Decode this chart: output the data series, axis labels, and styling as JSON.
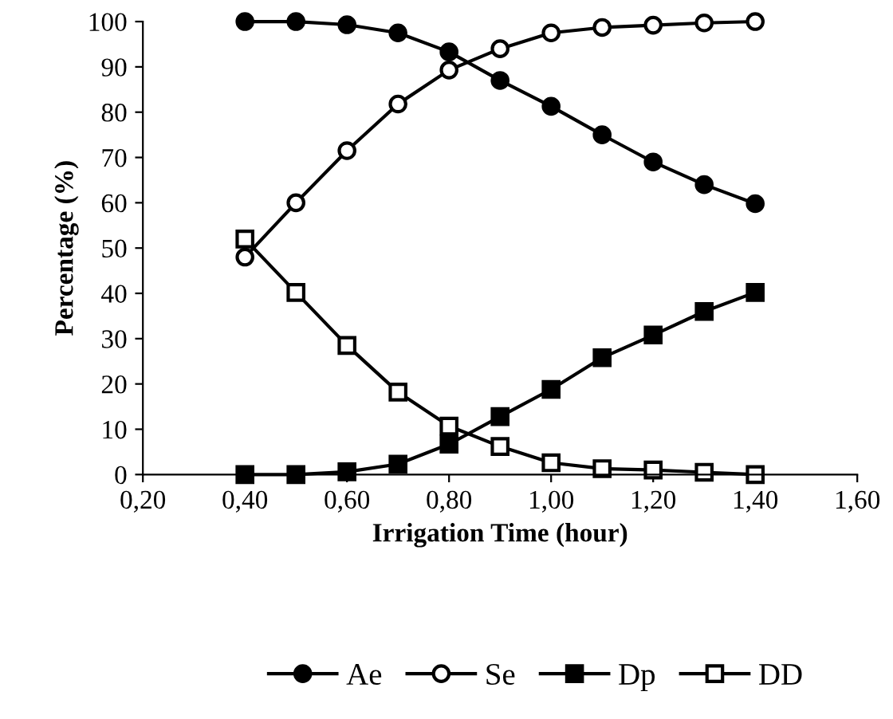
{
  "chart_data": {
    "type": "line",
    "xlabel": "Irrigation Time (hour)",
    "ylabel": "Percentage (%)",
    "x": [
      0.4,
      0.5,
      0.6,
      0.7,
      0.8,
      0.9,
      1.0,
      1.1,
      1.2,
      1.3,
      1.4
    ],
    "series": [
      {
        "name": "Ae",
        "color": "#000000",
        "marker": "circle",
        "values": [
          100,
          100,
          99.3,
          97.5,
          93.3,
          87,
          81.3,
          75,
          69,
          64,
          59.8
        ]
      },
      {
        "name": "Se",
        "color": "#000000",
        "marker": "circle",
        "values": [
          48,
          60,
          71.5,
          81.8,
          89.3,
          94,
          97.5,
          98.7,
          99.2,
          99.7,
          100
        ]
      },
      {
        "name": "Dp",
        "color": "#000000",
        "marker": "square",
        "values": [
          0,
          0,
          0.6,
          2.3,
          6.7,
          12.8,
          18.8,
          25.8,
          30.8,
          36,
          40.2
        ]
      },
      {
        "name": "DD",
        "color": "#000000",
        "marker": "square",
        "values": [
          52,
          40.2,
          28.5,
          18.2,
          10.7,
          6.2,
          2.6,
          1.3,
          1,
          0.5,
          0
        ]
      }
    ],
    "xlim": [
      0.2,
      1.6
    ],
    "xticks": [
      {
        "value": 0.2,
        "label": "0,20"
      },
      {
        "value": 0.4,
        "label": "0,40"
      },
      {
        "value": 0.6,
        "label": "0,60"
      },
      {
        "value": 0.8,
        "label": "0,80"
      },
      {
        "value": 1.0,
        "label": "1,00"
      },
      {
        "value": 1.2,
        "label": "1,20"
      },
      {
        "value": 1.4,
        "label": "1,40"
      },
      {
        "value": 1.6,
        "label": "1,60"
      }
    ],
    "ylim": [
      0,
      100
    ],
    "yticks": [
      0,
      10,
      20,
      30,
      40,
      50,
      60,
      70,
      80,
      90,
      100
    ],
    "grid": false,
    "legend": "bottom",
    "line_style": "solid"
  }
}
